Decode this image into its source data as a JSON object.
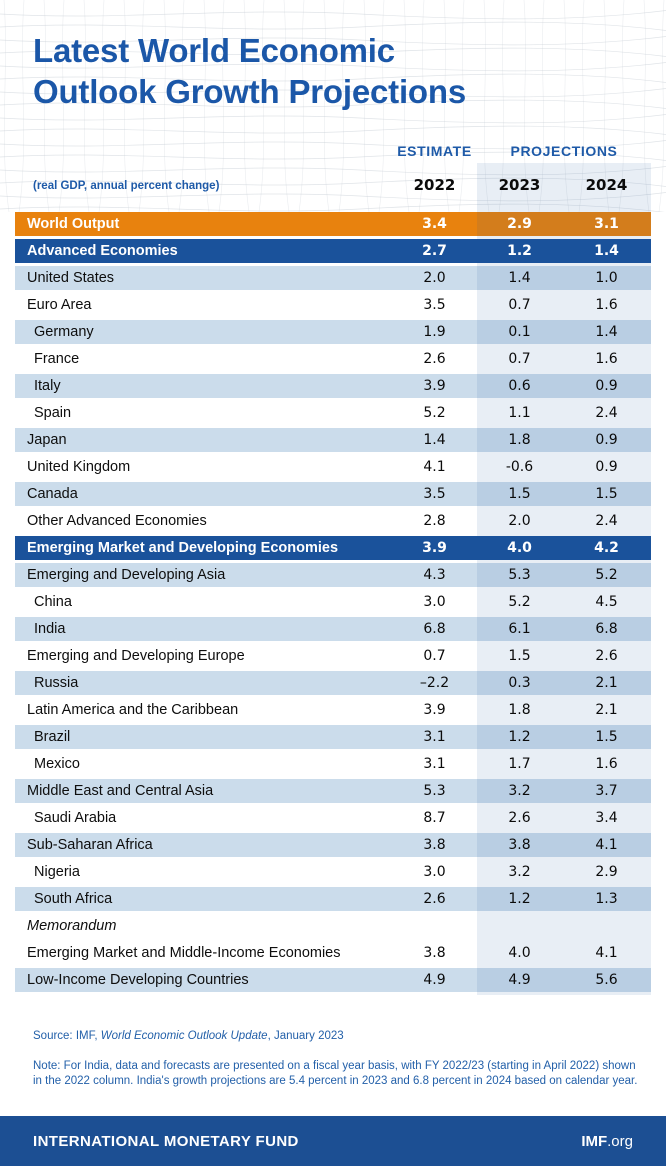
{
  "header": {
    "title_line1": "Latest World Economic",
    "title_line2": "Outlook Growth Projections",
    "subtitle": "(real GDP, annual percent change)",
    "estimate_label": "ESTIMATE",
    "projections_label": "PROJECTIONS",
    "year_estimate": "2022",
    "year_proj1": "2023",
    "year_proj2": "2024"
  },
  "colors": {
    "title_blue": "#1B57A8",
    "row_group_blue": "#1A529B",
    "row_world_orange": "#E8820E",
    "row_light_blue": "#CBDCEB",
    "projection_tint": "rgba(27,84,153,0.10)",
    "footer_text_blue": "#2360A9",
    "bottom_bar_blue": "#1C4F93"
  },
  "chart_data": {
    "type": "table",
    "title": "Latest World Economic Outlook Growth Projections",
    "subtitle": "(real GDP, annual percent change)",
    "columns": [
      "2022",
      "2023",
      "2024"
    ],
    "column_groups": {
      "estimate": [
        "2022"
      ],
      "projections": [
        "2023",
        "2024"
      ]
    },
    "rows": [
      {
        "label": "World Output",
        "values": [
          "3.4",
          "2.9",
          "3.1"
        ],
        "type": "world",
        "indent": false,
        "italic": false
      },
      {
        "label": "Advanced Economies",
        "values": [
          "2.7",
          "1.2",
          "1.4"
        ],
        "type": "group",
        "indent": false,
        "italic": false
      },
      {
        "label": "United States",
        "values": [
          "2.0",
          "1.4",
          "1.0"
        ],
        "type": "light",
        "indent": false,
        "italic": false
      },
      {
        "label": "Euro Area",
        "values": [
          "3.5",
          "0.7",
          "1.6"
        ],
        "type": "white",
        "indent": false,
        "italic": false
      },
      {
        "label": "Germany",
        "values": [
          "1.9",
          "0.1",
          "1.4"
        ],
        "type": "light",
        "indent": true,
        "italic": false
      },
      {
        "label": "France",
        "values": [
          "2.6",
          "0.7",
          "1.6"
        ],
        "type": "white",
        "indent": true,
        "italic": false
      },
      {
        "label": "Italy",
        "values": [
          "3.9",
          "0.6",
          "0.9"
        ],
        "type": "light",
        "indent": true,
        "italic": false
      },
      {
        "label": "Spain",
        "values": [
          "5.2",
          "1.1",
          "2.4"
        ],
        "type": "white",
        "indent": true,
        "italic": false
      },
      {
        "label": "Japan",
        "values": [
          "1.4",
          "1.8",
          "0.9"
        ],
        "type": "light",
        "indent": false,
        "italic": false
      },
      {
        "label": "United Kingdom",
        "values": [
          "4.1",
          "-0.6",
          "0.9"
        ],
        "type": "white",
        "indent": false,
        "italic": false
      },
      {
        "label": "Canada",
        "values": [
          "3.5",
          "1.5",
          "1.5"
        ],
        "type": "light",
        "indent": false,
        "italic": false
      },
      {
        "label": "Other Advanced Economies",
        "values": [
          "2.8",
          "2.0",
          "2.4"
        ],
        "type": "white",
        "indent": false,
        "italic": false
      },
      {
        "label": "Emerging Market and Developing Economies",
        "values": [
          "3.9",
          "4.0",
          "4.2"
        ],
        "type": "group",
        "indent": false,
        "italic": false
      },
      {
        "label": "Emerging and Developing Asia",
        "values": [
          "4.3",
          "5.3",
          "5.2"
        ],
        "type": "light",
        "indent": false,
        "italic": false
      },
      {
        "label": "China",
        "values": [
          "3.0",
          "5.2",
          "4.5"
        ],
        "type": "white",
        "indent": true,
        "italic": false
      },
      {
        "label": "India",
        "values": [
          "6.8",
          "6.1",
          "6.8"
        ],
        "type": "light",
        "indent": true,
        "italic": false
      },
      {
        "label": "Emerging and Developing Europe",
        "values": [
          "0.7",
          "1.5",
          "2.6"
        ],
        "type": "white",
        "indent": false,
        "italic": false
      },
      {
        "label": "Russia",
        "values": [
          "–2.2",
          "0.3",
          "2.1"
        ],
        "type": "light",
        "indent": true,
        "italic": false
      },
      {
        "label": "Latin America and the Caribbean",
        "values": [
          "3.9",
          "1.8",
          "2.1"
        ],
        "type": "white",
        "indent": false,
        "italic": false
      },
      {
        "label": "Brazil",
        "values": [
          "3.1",
          "1.2",
          "1.5"
        ],
        "type": "light",
        "indent": true,
        "italic": false
      },
      {
        "label": "Mexico",
        "values": [
          "3.1",
          "1.7",
          "1.6"
        ],
        "type": "white",
        "indent": true,
        "italic": false
      },
      {
        "label": "Middle East and Central Asia",
        "values": [
          "5.3",
          "3.2",
          "3.7"
        ],
        "type": "light",
        "indent": false,
        "italic": false
      },
      {
        "label": "Saudi Arabia",
        "values": [
          "8.7",
          "2.6",
          "3.4"
        ],
        "type": "white",
        "indent": true,
        "italic": false
      },
      {
        "label": "Sub-Saharan Africa",
        "values": [
          "3.8",
          "3.8",
          "4.1"
        ],
        "type": "light",
        "indent": false,
        "italic": false
      },
      {
        "label": "Nigeria",
        "values": [
          "3.0",
          "3.2",
          "2.9"
        ],
        "type": "white",
        "indent": true,
        "italic": false
      },
      {
        "label": "South Africa",
        "values": [
          "2.6",
          "1.2",
          "1.3"
        ],
        "type": "light",
        "indent": true,
        "italic": false
      },
      {
        "label": "Memorandum",
        "values": [
          "",
          "",
          ""
        ],
        "type": "white",
        "indent": false,
        "italic": true
      },
      {
        "label": "Emerging Market and Middle-Income Economies",
        "values": [
          "3.8",
          "4.0",
          "4.1"
        ],
        "type": "white",
        "indent": false,
        "italic": false
      },
      {
        "label": "Low-Income Developing Countries",
        "values": [
          "4.9",
          "4.9",
          "5.6"
        ],
        "type": "light",
        "indent": false,
        "italic": false
      }
    ]
  },
  "footer": {
    "source_prefix": "Source: IMF, ",
    "source_italic": "World Economic Outlook Update",
    "source_suffix": ", January 2023",
    "note": "Note: For India, data and forecasts are presented on a fiscal year basis, with FY 2022/23 (starting in April 2022) shown in the 2022 column. India's growth projections are 5.4 percent in 2023 and 6.8 percent in 2024 based on calendar year."
  },
  "bottom_bar": {
    "org_name": "INTERNATIONAL MONETARY FUND",
    "site_bold": "IMF",
    "site_suffix": ".org"
  }
}
